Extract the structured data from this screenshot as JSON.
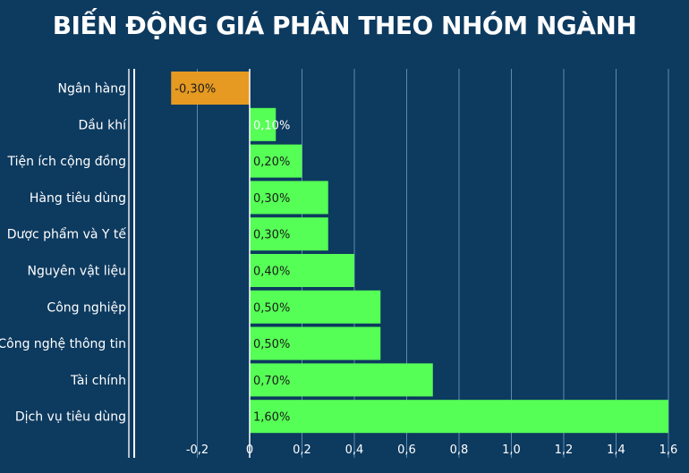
{
  "chart_data": {
    "type": "bar",
    "orientation": "horizontal",
    "title": "BIẾN ĐỘNG GIÁ PHÂN THEO NHÓM NGÀNH",
    "categories": [
      "Ngân hàng",
      "Dầu khí",
      "Tiện ích cộng đồng",
      "Hàng tiêu dùng",
      "Dược phẩm và Y tế",
      "Nguyên vật liệu",
      "Công nghiệp",
      "Công nghệ thông tin",
      "Tài chính",
      "Dịch vụ tiêu dùng"
    ],
    "values": [
      -0.3,
      0.1,
      0.2,
      0.3,
      0.3,
      0.4,
      0.5,
      0.5,
      0.7,
      1.6
    ],
    "data_labels": [
      "-0,30%",
      "0,10%",
      "0,20%",
      "0,30%",
      "0,30%",
      "0,40%",
      "0,50%",
      "0,50%",
      "0,70%",
      "1,60%"
    ],
    "xlim": [
      -0.4,
      1.65
    ],
    "xticks": [
      -0.2,
      0,
      0.2,
      0.4,
      0.6,
      0.8,
      1.0,
      1.2,
      1.4,
      1.6
    ],
    "xtick_labels": [
      "-0,2",
      "0",
      "0,2",
      "0,4",
      "0,6",
      "0,8",
      "1,0",
      "1,2",
      "1,4",
      "1,6"
    ],
    "grid": true,
    "xlabel": "",
    "ylabel": "",
    "colors": {
      "background": "#0d3a5f",
      "positive": "#55ff55",
      "negative": "#e69a22",
      "gridline": "#5f8ab0",
      "text": "#ffffff"
    }
  }
}
